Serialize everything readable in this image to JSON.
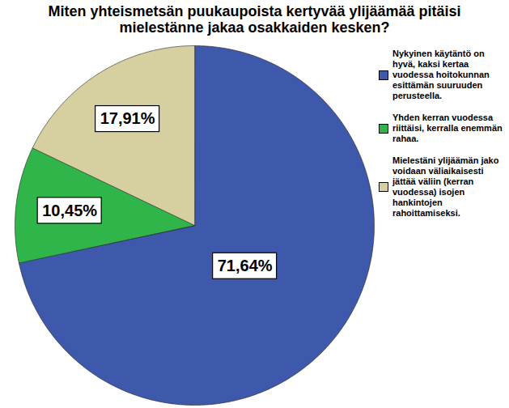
{
  "chart_data": {
    "type": "pie",
    "title": "Miten yhteismetsän puukaupoista kertyvää ylijäämää pitäisi mielestänne jakaa osakkaiden kesken?",
    "categories": [
      "Nykyinen käytäntö on hyvä, kaksi kertaa vuodessa hoitokunnan esittämän suuruuden perusteella.",
      "Yhden kerran vuodessa riittäisi, kerralla enemmän rahaa.",
      "Mielestäni ylijäämän jako voidaan väliaikaisesti jättää väliin (kerran vuodessa) isojen hankintojen rahoittamiseksi."
    ],
    "values": [
      71.64,
      10.45,
      17.91
    ],
    "value_labels": [
      "71,64%",
      "10,45%",
      "17,91%"
    ],
    "colors": [
      "#3e58ac",
      "#30b54a",
      "#d6cf9f"
    ],
    "data_labels": true,
    "legend": "right"
  }
}
